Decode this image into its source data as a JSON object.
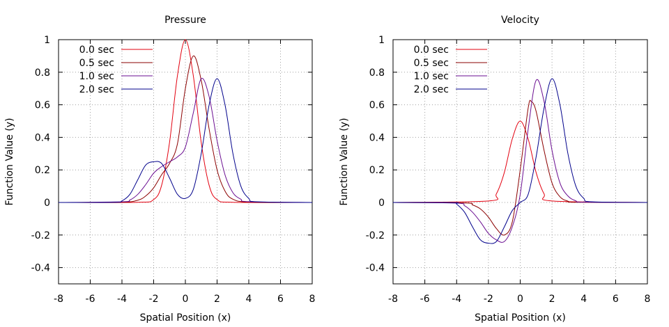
{
  "chart_data": [
    {
      "type": "line",
      "title": "Pressure",
      "xlabel": "Spatial Position (x)",
      "ylabel": "Function Value (y)",
      "xlim": [
        -8,
        8
      ],
      "ylim": [
        -0.5,
        1
      ],
      "xticks": [
        "-8",
        "-6",
        "-4",
        "-2",
        "0",
        "2",
        "4",
        "6",
        "8"
      ],
      "yticks": [
        "-0.4",
        "-0.2",
        "0",
        "0.2",
        "0.4",
        "0.6",
        "0.8",
        "1"
      ],
      "grid": true,
      "legend_position": "top-left",
      "series": [
        {
          "name": "0.0 sec",
          "color": "#e3000f",
          "x": [
            -8,
            -3,
            -2,
            -1.5,
            -1,
            -0.5,
            0,
            0.5,
            1,
            1.5,
            2,
            3,
            8
          ],
          "y": [
            0,
            0.001,
            0.018,
            0.105,
            0.368,
            0.779,
            1.0,
            0.779,
            0.368,
            0.105,
            0.018,
            0.001,
            0
          ]
        },
        {
          "name": "0.5 sec",
          "color": "#8b0000",
          "x": [
            -8,
            -4,
            -3,
            -2.5,
            -2,
            -1.5,
            -1,
            -0.5,
            0,
            0.5,
            1,
            1.5,
            2,
            2.5,
            3,
            4,
            8
          ],
          "y": [
            0,
            0.002,
            0.014,
            0.04,
            0.09,
            0.17,
            0.24,
            0.36,
            0.7,
            0.9,
            0.75,
            0.45,
            0.2,
            0.07,
            0.02,
            0.003,
            0
          ]
        },
        {
          "name": "1.0 sec",
          "color": "#6a0d91",
          "x": [
            -8,
            -4,
            -3.5,
            -3,
            -2.5,
            -2,
            -1.5,
            -1,
            -0.5,
            0,
            0.5,
            1,
            1.5,
            2,
            2.5,
            3,
            3.5,
            4,
            8
          ],
          "y": [
            0,
            0.004,
            0.015,
            0.05,
            0.11,
            0.18,
            0.22,
            0.25,
            0.28,
            0.34,
            0.55,
            0.76,
            0.65,
            0.38,
            0.17,
            0.06,
            0.02,
            0.005,
            0
          ]
        },
        {
          "name": "2.0 sec",
          "color": "#00008b",
          "x": [
            -8,
            -4.5,
            -4,
            -3.5,
            -3,
            -2.5,
            -2,
            -1.5,
            -1,
            -0.5,
            0,
            0.5,
            1,
            1.5,
            2,
            2.5,
            3,
            3.5,
            4,
            4.5,
            8
          ],
          "y": [
            0,
            0.001,
            0.01,
            0.05,
            0.14,
            0.23,
            0.25,
            0.24,
            0.15,
            0.05,
            0.025,
            0.08,
            0.3,
            0.6,
            0.76,
            0.6,
            0.3,
            0.1,
            0.025,
            0.004,
            0
          ]
        }
      ]
    },
    {
      "type": "line",
      "title": "Velocity",
      "xlabel": "Spatial Position (x)",
      "ylabel": "Function Value (y)",
      "xlim": [
        -8,
        8
      ],
      "ylim": [
        -0.5,
        1
      ],
      "xticks": [
        "-8",
        "-6",
        "-4",
        "-2",
        "0",
        "2",
        "4",
        "6",
        "8"
      ],
      "yticks": [
        "-0.4",
        "-0.2",
        "0",
        "0.2",
        "0.4",
        "0.6",
        "0.8",
        "1"
      ],
      "grid": true,
      "legend_position": "top-left",
      "series": [
        {
          "name": "0.0 sec",
          "color": "#e3000f",
          "x": [
            -8,
            -2,
            -1.5,
            -1,
            -0.5,
            0,
            0.5,
            1,
            1.5,
            2,
            8
          ],
          "y": [
            0,
            0.009,
            0.053,
            0.184,
            0.39,
            0.5,
            0.39,
            0.184,
            0.053,
            0.009,
            0
          ]
        },
        {
          "name": "0.5 sec",
          "color": "#8b0000",
          "x": [
            -8,
            -3.5,
            -3,
            -2.5,
            -2,
            -1.5,
            -1,
            -0.5,
            0,
            0.5,
            0.7,
            1,
            1.5,
            2,
            2.5,
            3,
            3.5,
            8
          ],
          "y": [
            0,
            -0.003,
            -0.015,
            -0.04,
            -0.09,
            -0.16,
            -0.2,
            -0.12,
            0.2,
            0.58,
            0.62,
            0.56,
            0.32,
            0.12,
            0.035,
            0.008,
            0.001,
            0
          ]
        },
        {
          "name": "1.0 sec",
          "color": "#6a0d91",
          "x": [
            -8,
            -4,
            -3.5,
            -3,
            -2.5,
            -2,
            -1.5,
            -1,
            -0.5,
            0,
            0.5,
            1,
            1.5,
            2,
            2.5,
            3,
            3.5,
            4,
            8
          ],
          "y": [
            0,
            -0.004,
            -0.02,
            -0.06,
            -0.12,
            -0.19,
            -0.23,
            -0.24,
            -0.15,
            0.05,
            0.45,
            0.75,
            0.62,
            0.32,
            0.12,
            0.04,
            0.01,
            0.002,
            0
          ]
        },
        {
          "name": "2.0 sec",
          "color": "#00008b",
          "x": [
            -8,
            -4.2,
            -4,
            -3.5,
            -3,
            -2.5,
            -2,
            -1.5,
            -1,
            -0.5,
            0,
            0.5,
            1,
            1.5,
            2,
            2.5,
            3,
            3.5,
            4,
            4.5,
            8
          ],
          "y": [
            0,
            -0.001,
            -0.01,
            -0.06,
            -0.15,
            -0.23,
            -0.25,
            -0.24,
            -0.15,
            -0.05,
            0.0,
            0.05,
            0.28,
            0.58,
            0.76,
            0.6,
            0.3,
            0.1,
            0.025,
            0.004,
            0
          ]
        }
      ]
    }
  ]
}
